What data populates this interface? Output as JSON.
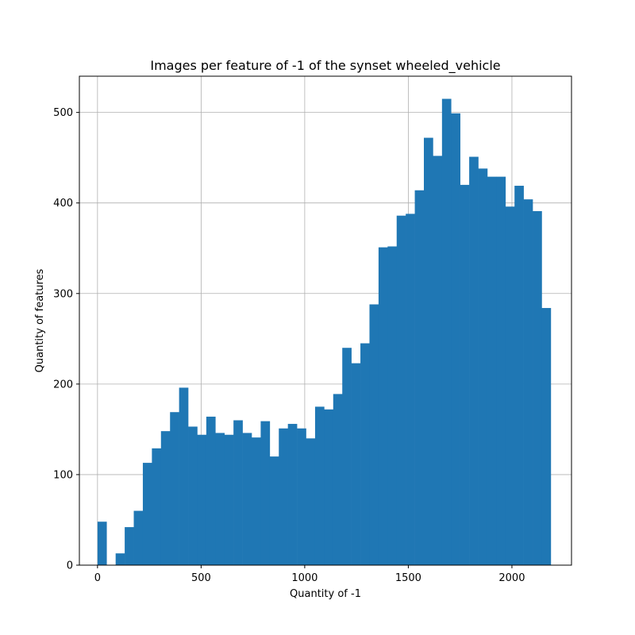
{
  "chart_data": {
    "type": "bar",
    "title": "Images per feature of -1 of the synset wheeled_vehicle",
    "xlabel": "Quantity of -1",
    "ylabel": "Quantity of features",
    "xlim": [
      -87.5,
      2287.5
    ],
    "ylim": [
      0,
      540
    ],
    "x_ticks": [
      0,
      500,
      1000,
      1500,
      2000
    ],
    "y_ticks": [
      0,
      100,
      200,
      300,
      400,
      500
    ],
    "grid": true,
    "bar_color": "#1f77b4",
    "bin_start": 0,
    "bin_width": 43.75,
    "values": [
      48,
      0,
      13,
      42,
      60,
      113,
      129,
      148,
      169,
      196,
      153,
      144,
      164,
      146,
      144,
      160,
      146,
      141,
      159,
      120,
      151,
      156,
      151,
      140,
      175,
      172,
      189,
      240,
      223,
      245,
      288,
      351,
      352,
      386,
      388,
      414,
      472,
      452,
      515,
      499,
      420,
      451,
      438,
      429,
      429,
      396,
      419,
      404,
      391,
      284
    ]
  }
}
